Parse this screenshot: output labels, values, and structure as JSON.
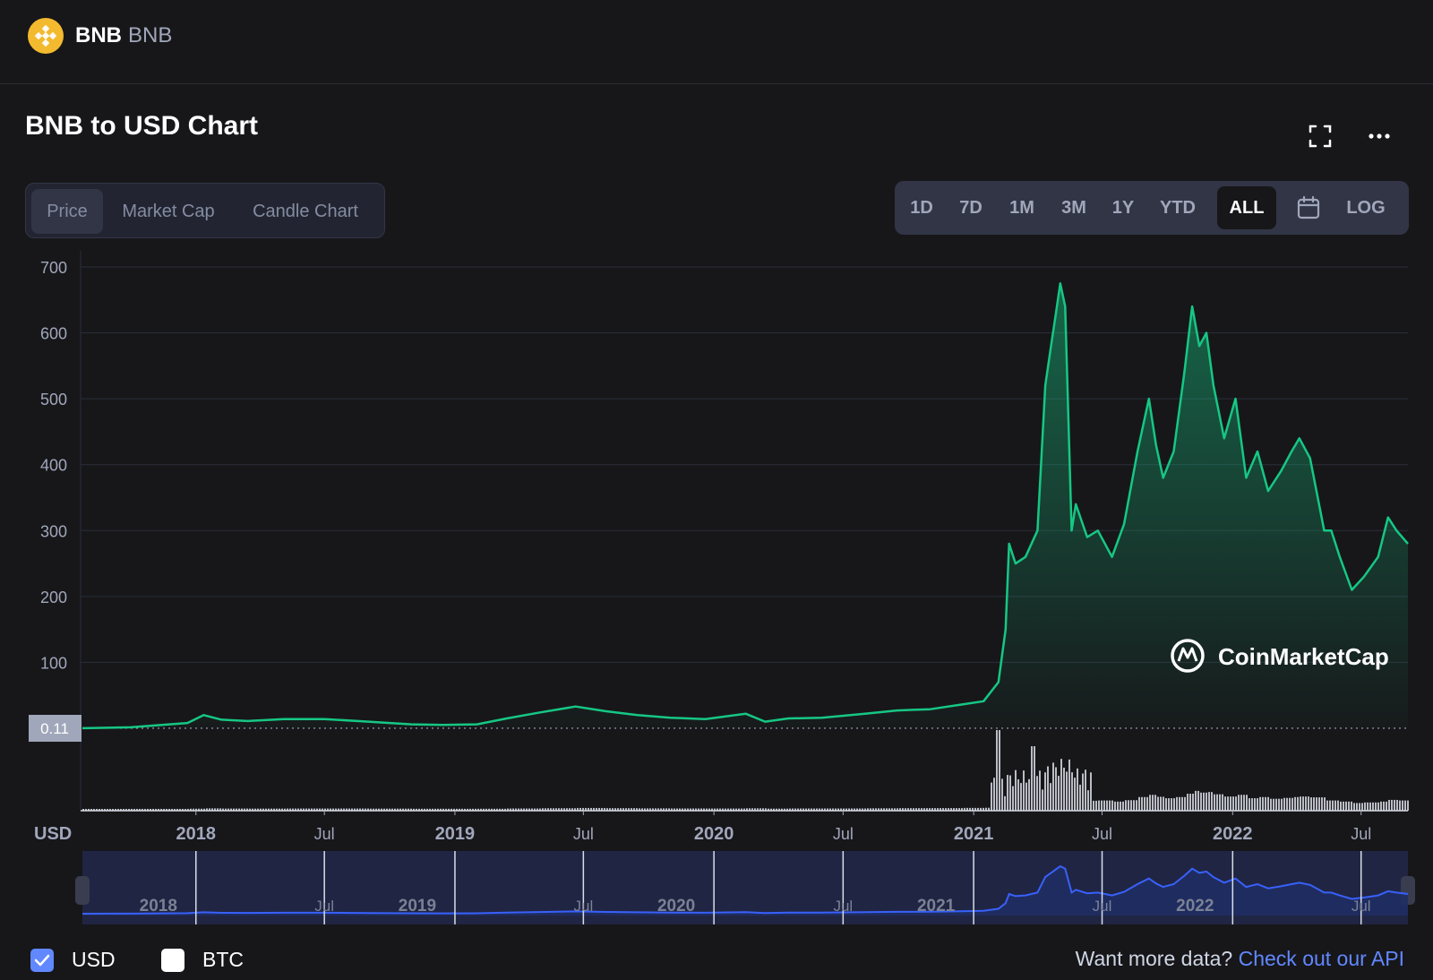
{
  "header": {
    "coin_name": "BNB",
    "coin_symbol": "BNB",
    "logo_icon": "bnb-logo-icon",
    "logo_color": "#f3ba2f"
  },
  "chart_header": {
    "title": "BNB to USD Chart"
  },
  "chart_type_tabs": [
    {
      "label": "Price",
      "active": true
    },
    {
      "label": "Market Cap",
      "active": false
    },
    {
      "label": "Candle Chart",
      "active": false
    }
  ],
  "range_tabs": [
    {
      "label": "1D",
      "active": false
    },
    {
      "label": "7D",
      "active": false
    },
    {
      "label": "1M",
      "active": false
    },
    {
      "label": "3M",
      "active": false
    },
    {
      "label": "1Y",
      "active": false
    },
    {
      "label": "YTD",
      "active": false
    },
    {
      "label": "ALL",
      "active": true
    }
  ],
  "log_label": "LOG",
  "icons": {
    "fullscreen": "fullscreen-icon",
    "more": "more-horizontal-icon",
    "calendar": "calendar-icon"
  },
  "colors": {
    "price_line": "#16c784",
    "navigator_line": "#3861fb",
    "usd_checkbox": "#6188ff",
    "link": "#6188ff",
    "background": "#17171a"
  },
  "chart_data": {
    "type": "area",
    "currency_label": "USD",
    "watermark": "CoinMarketCap",
    "ylim": [
      0,
      700
    ],
    "y_ticks": [
      100,
      200,
      300,
      400,
      500,
      600,
      700
    ],
    "first_price_label": "0.11",
    "grid": true,
    "x_tick_labels": [
      {
        "t": "2018-01-01",
        "label": "2018"
      },
      {
        "t": "2018-07-01",
        "label": "Jul"
      },
      {
        "t": "2019-01-01",
        "label": "2019"
      },
      {
        "t": "2019-07-01",
        "label": "Jul"
      },
      {
        "t": "2020-01-01",
        "label": "2020"
      },
      {
        "t": "2020-07-01",
        "label": "Jul"
      },
      {
        "t": "2021-01-01",
        "label": "2021"
      },
      {
        "t": "2021-07-01",
        "label": "Jul"
      },
      {
        "t": "2022-01-01",
        "label": "2022"
      },
      {
        "t": "2022-07-01",
        "label": "Jul"
      }
    ],
    "x_range": [
      "2017-07-25",
      "2022-09-05"
    ],
    "series": [
      {
        "x": [
          "2017-07-25",
          "2017-10-01",
          "2017-12-20",
          "2018-01-12",
          "2018-02-06",
          "2018-03-15",
          "2018-05-05",
          "2018-07-01",
          "2018-09-01",
          "2018-11-01",
          "2018-12-15",
          "2019-02-01",
          "2019-03-15",
          "2019-05-01",
          "2019-06-20",
          "2019-08-01",
          "2019-09-15",
          "2019-11-01",
          "2019-12-20",
          "2020-02-15",
          "2020-03-13",
          "2020-04-15",
          "2020-06-01",
          "2020-08-01",
          "2020-09-15",
          "2020-11-01",
          "2020-12-15",
          "2021-01-15",
          "2021-02-05",
          "2021-02-15",
          "2021-02-20",
          "2021-03-01",
          "2021-03-15",
          "2021-04-01",
          "2021-04-12",
          "2021-04-20",
          "2021-04-27",
          "2021-05-03",
          "2021-05-10",
          "2021-05-19",
          "2021-05-25",
          "2021-06-10",
          "2021-06-25",
          "2021-07-15",
          "2021-08-01",
          "2021-08-20",
          "2021-09-05",
          "2021-09-15",
          "2021-09-25",
          "2021-10-10",
          "2021-10-25",
          "2021-11-05",
          "2021-11-15",
          "2021-11-25",
          "2021-12-05",
          "2021-12-20",
          "2022-01-05",
          "2022-01-20",
          "2022-02-05",
          "2022-02-20",
          "2022-03-10",
          "2022-03-25",
          "2022-04-05",
          "2022-04-20",
          "2022-05-10",
          "2022-05-20",
          "2022-06-01",
          "2022-06-18",
          "2022-07-05",
          "2022-07-25",
          "2022-08-08",
          "2022-08-20",
          "2022-09-05"
        ],
        "values": [
          0.11,
          1.5,
          8,
          20,
          13,
          11,
          14,
          14,
          10,
          6,
          5,
          6,
          15,
          24,
          33,
          26,
          20,
          16,
          14,
          22,
          10,
          15,
          16,
          22,
          27,
          29,
          36,
          41,
          70,
          150,
          280,
          250,
          260,
          300,
          520,
          580,
          630,
          675,
          640,
          300,
          340,
          290,
          300,
          260,
          310,
          420,
          500,
          430,
          380,
          420,
          540,
          640,
          580,
          600,
          520,
          440,
          500,
          380,
          420,
          360,
          390,
          420,
          440,
          410,
          300,
          300,
          260,
          210,
          230,
          260,
          320,
          300,
          280
        ]
      }
    ],
    "volume_note": "volume histogram shown below the price line; spikes in early-to-mid 2021",
    "navigator": {
      "x_range": [
        "2017-07-25",
        "2022-09-05"
      ]
    }
  },
  "legend": [
    {
      "label": "USD",
      "checked": true
    },
    {
      "label": "BTC",
      "checked": false
    }
  ],
  "footer": {
    "api_prompt": "Want more data?",
    "api_link": "Check out our API"
  }
}
